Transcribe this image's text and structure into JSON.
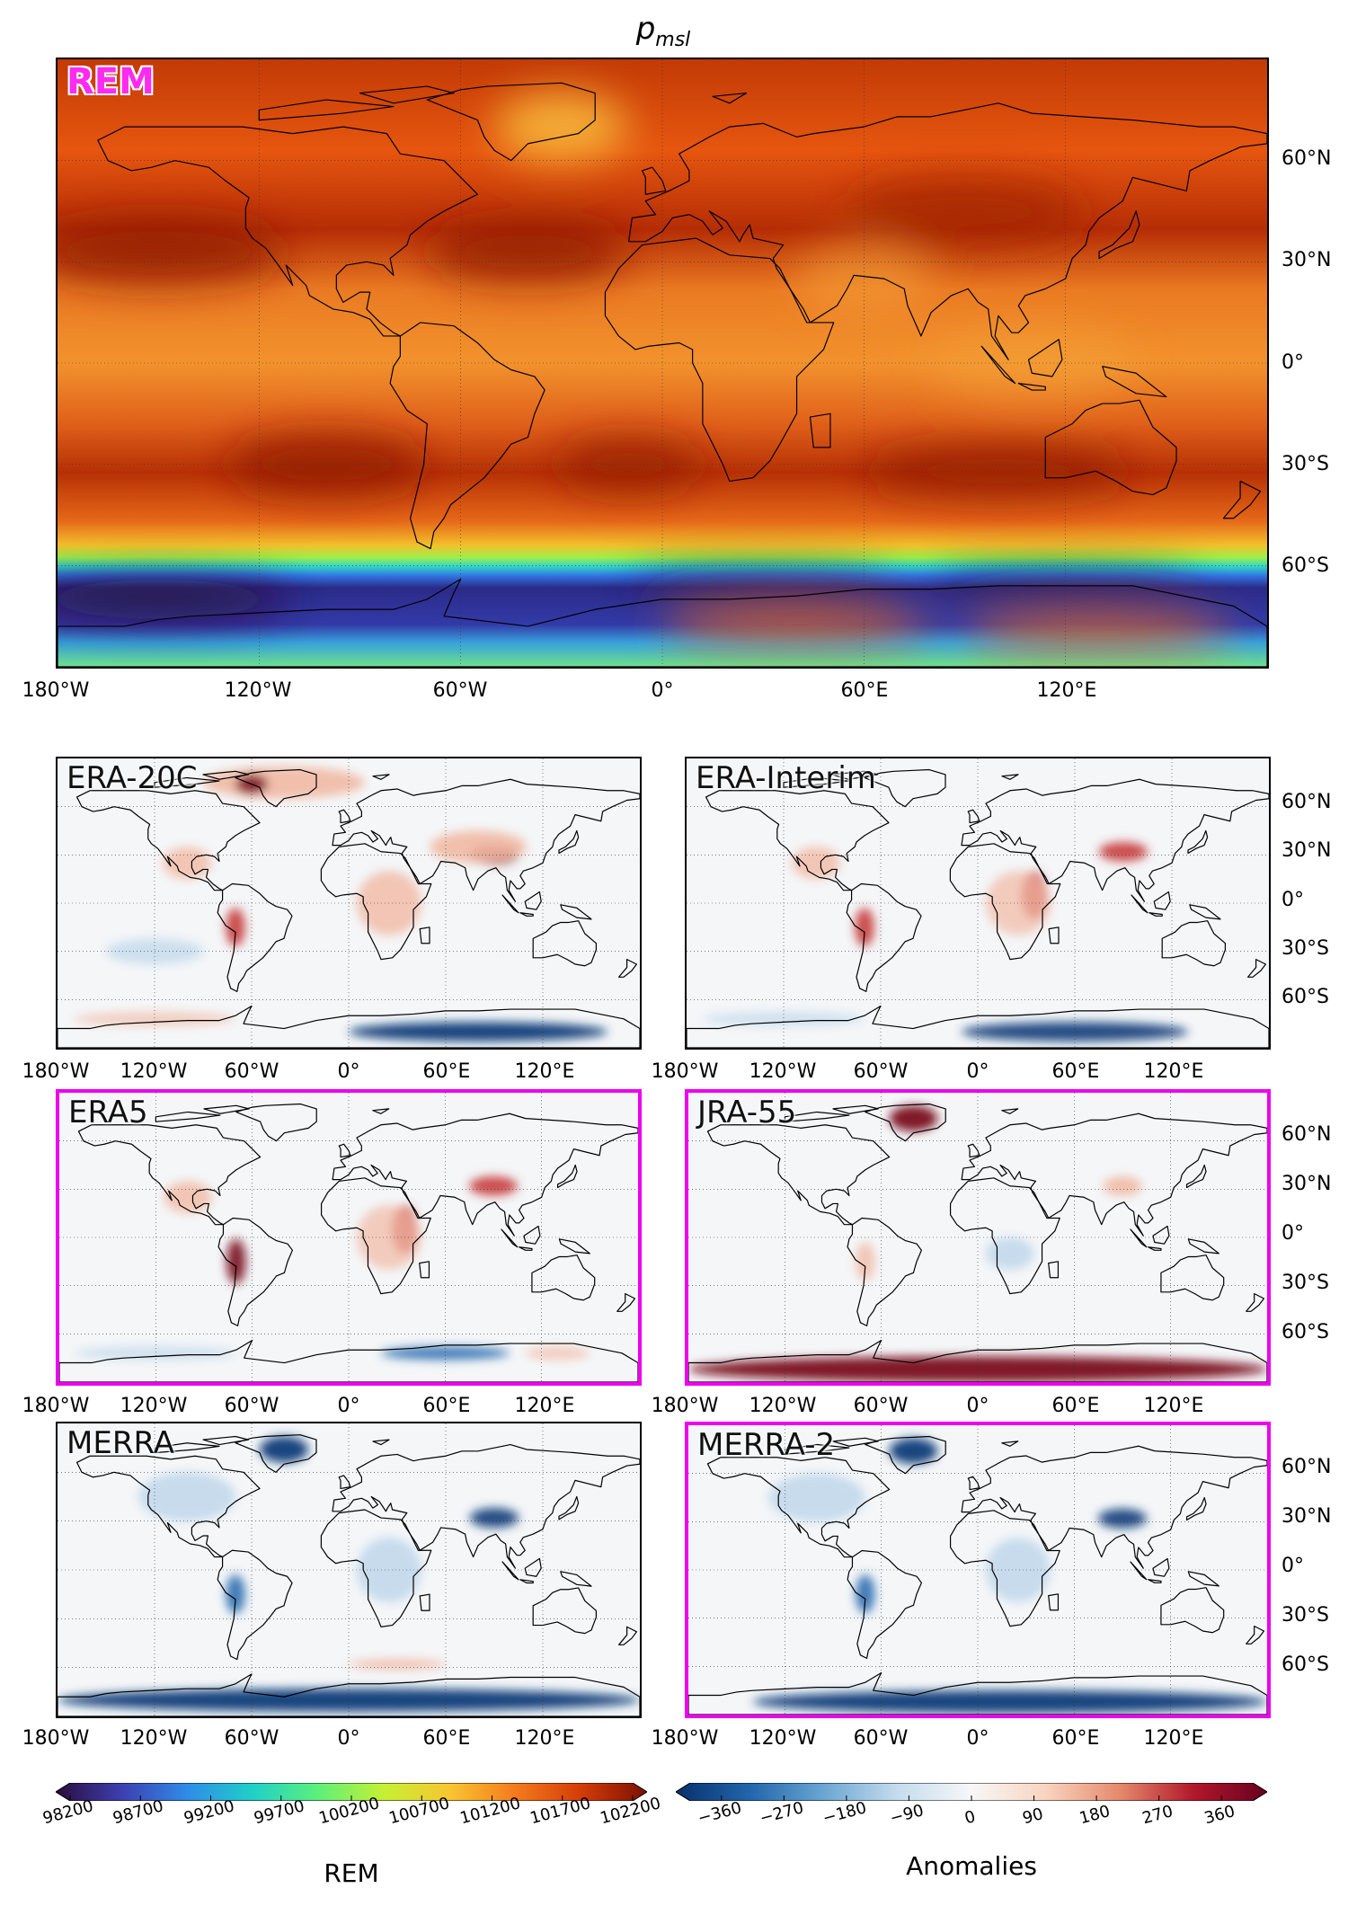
{
  "figure": {
    "title_main": "p",
    "title_sub": "msl"
  },
  "panels": [
    {
      "key": "rem",
      "label": "REM",
      "highlight": false,
      "scheme": "rem"
    },
    {
      "key": "era20c",
      "label": "ERA-20C",
      "highlight": false,
      "scheme": "anom"
    },
    {
      "key": "erainterim",
      "label": "ERA-Interim",
      "highlight": false,
      "scheme": "anom"
    },
    {
      "key": "era5",
      "label": "ERA5",
      "highlight": true,
      "scheme": "anom"
    },
    {
      "key": "jra55",
      "label": "JRA-55",
      "highlight": true,
      "scheme": "anom"
    },
    {
      "key": "merra",
      "label": "MERRA",
      "highlight": false,
      "scheme": "anom"
    },
    {
      "key": "merra2",
      "label": "MERRA-2",
      "highlight": true,
      "scheme": "anom"
    }
  ],
  "axes": {
    "lon_ticks_main": [
      "180°W",
      "120°W",
      "60°W",
      "0°",
      "60°E",
      "120°E"
    ],
    "lat_ticks_main": [
      "60°N",
      "30°N",
      "0°",
      "30°S",
      "60°S"
    ],
    "lon_ticks_small": [
      "180°W",
      "120°W",
      "60°W",
      "0°",
      "60°E",
      "120°E"
    ],
    "lat_ticks_small": [
      "60°N",
      "30°N",
      "0°",
      "30°S",
      "60°S"
    ]
  },
  "colorbars": {
    "rem": {
      "label": "REM",
      "ticks": [
        "98200",
        "98700",
        "99200",
        "99700",
        "100200",
        "100700",
        "101200",
        "101700",
        "102200"
      ],
      "range": [
        98200,
        102200
      ],
      "colors": [
        "#2a0c3a",
        "#3d3fb0",
        "#2f8be8",
        "#1fd0c8",
        "#5df07a",
        "#c6f032",
        "#f9c531",
        "#f47a1c",
        "#d33c08",
        "#7a0f03"
      ]
    },
    "anom": {
      "label": "Anomalies",
      "ticks": [
        "−360",
        "−270",
        "−180",
        "−90",
        "0",
        "90",
        "180",
        "270",
        "360"
      ],
      "range": [
        -405,
        405
      ],
      "colors": [
        "#08306b",
        "#2166ac",
        "#6aa6d2",
        "#c5dcee",
        "#f7f7f7",
        "#f9d4c0",
        "#e58a6d",
        "#b2182b",
        "#67001f"
      ]
    }
  }
}
